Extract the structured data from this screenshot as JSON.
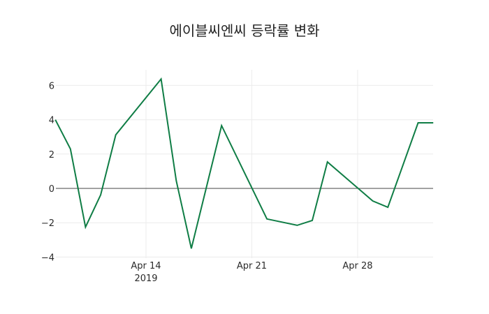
{
  "chart_data": {
    "type": "line",
    "title": "에이블씨엔씨 등락률 변화",
    "xlabel": "",
    "ylabel": "",
    "x": [
      "2019-04-08",
      "2019-04-09",
      "2019-04-10",
      "2019-04-11",
      "2019-04-12",
      "2019-04-15",
      "2019-04-16",
      "2019-04-17",
      "2019-04-19",
      "2019-04-22",
      "2019-04-24",
      "2019-04-25",
      "2019-04-26",
      "2019-04-29",
      "2019-04-30",
      "2019-05-02",
      "2019-05-03"
    ],
    "series": [
      {
        "name": "등락률",
        "color": "#0f7d45",
        "values": [
          4.0,
          2.3,
          -2.25,
          -0.38,
          3.12,
          6.37,
          0.45,
          -3.5,
          3.66,
          -1.78,
          -2.15,
          -1.87,
          1.54,
          -0.73,
          -1.1,
          3.82,
          3.82
        ]
      }
    ],
    "y_ticks": [
      "6",
      "4",
      "2",
      "0",
      "−2",
      "−4"
    ],
    "y_tick_values": [
      6,
      4,
      2,
      0,
      -2,
      -4
    ],
    "x_ticks": [
      {
        "label": "Apr 14",
        "sub": "2019",
        "date": "2019-04-14"
      },
      {
        "label": "Apr 21",
        "sub": "",
        "date": "2019-04-21"
      },
      {
        "label": "Apr 28",
        "sub": "",
        "date": "2019-04-28"
      }
    ],
    "ylim": [
      -4,
      6.8
    ],
    "grid": true,
    "zero_line": true,
    "legend": "none"
  }
}
